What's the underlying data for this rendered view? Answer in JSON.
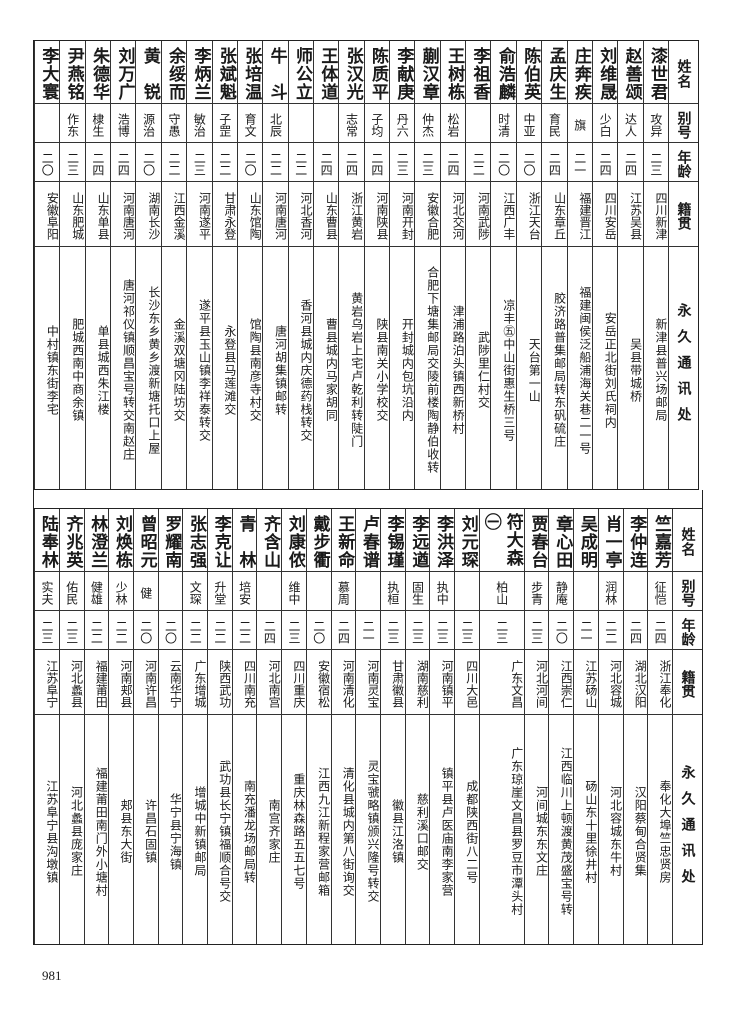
{
  "headers": {
    "name": "姓名",
    "alias": "别号",
    "age": "年龄",
    "origin": "籍贯",
    "address": "永久通讯处"
  },
  "top_table": [
    {
      "name": "漆世君",
      "alias": "攻异",
      "age": "二三",
      "origin": "四川新津",
      "address": "新津县普兴场邮局"
    },
    {
      "name": "赵善颂",
      "alias": "达人",
      "age": "二四",
      "origin": "江苏吴县",
      "address": "吴县带城桥"
    },
    {
      "name": "刘维晟",
      "alias": "少白",
      "age": "二四",
      "origin": "四川安岳",
      "address": "安岳正北街刘氏祠内"
    },
    {
      "name": "庄奔疾",
      "alias": "旗",
      "age": "二一",
      "origin": "福建晋江",
      "address": "福建闽侯泛船浦海关巷二一号"
    },
    {
      "name": "孟庆生",
      "alias": "育民",
      "age": "二四",
      "origin": "山东章丘",
      "address": "胶济路普集邮局转东矾硫庄"
    },
    {
      "name": "陈伯英",
      "alias": "中亚",
      "age": "二〇",
      "origin": "浙江天台",
      "address": "天台第一山"
    },
    {
      "name": "俞浩麟",
      "alias": "时清",
      "age": "二〇",
      "origin": "江西广丰",
      "address": "凉丰㊄中山街惠生桥三号"
    },
    {
      "name": "李祖香",
      "alias": "",
      "age": "二二",
      "origin": "河南武陟",
      "address": "武陟里仁村交"
    },
    {
      "name": "王树栋",
      "alias": "松岩",
      "age": "二四",
      "origin": "河北交河",
      "address": "津浦路泊头镇西新桥村"
    },
    {
      "name": "蒯汉章",
      "alias": "仲杰",
      "age": "二三",
      "origin": "安徽合肥",
      "address": "合肥下塘集邮局交陵前楼陶静伯收转"
    },
    {
      "name": "李献庚",
      "alias": "丹六",
      "age": "二三",
      "origin": "河南开封",
      "address": "开封城内包坑沿内"
    },
    {
      "name": "陈质平",
      "alias": "子均",
      "age": "二四",
      "origin": "河南陕县",
      "address": "陕县南关小学校交"
    },
    {
      "name": "张汉光",
      "alias": "志常",
      "age": "二四",
      "origin": "浙江黄岩",
      "address": "黄岩乌岩上宅卢乾利转陡门"
    },
    {
      "name": "王体道",
      "alias": "",
      "age": "二四",
      "origin": "山东曹县",
      "address": "曹县城内马家胡同"
    },
    {
      "name": "师公立",
      "alias": "",
      "age": "二二",
      "origin": "河北香河",
      "address": "香河县城内庆德药栈转交"
    },
    {
      "name": "牛　斗",
      "alias": "北辰",
      "age": "二二",
      "origin": "河南唐河",
      "address": "唐河胡集镇邮转"
    },
    {
      "name": "张培温",
      "alias": "育文",
      "age": "二〇",
      "origin": "山东馆陶",
      "address": "馆陶县南彦寺村交"
    },
    {
      "name": "张斌魁",
      "alias": "子罡",
      "age": "二二",
      "origin": "甘肃永登",
      "address": "永登县马莲滩交"
    },
    {
      "name": "李炳兰",
      "alias": "敏治",
      "age": "二三",
      "origin": "河南遂平",
      "address": "遂平县玉山镇李祥泰转交"
    },
    {
      "name": "余绥而",
      "alias": "守愚",
      "age": "二二",
      "origin": "江西金溪",
      "address": "金溪双塘冈陆坊交"
    },
    {
      "name": "黄　锐",
      "alias": "源治",
      "age": "二〇",
      "origin": "湖南长沙",
      "address": "长沙东乡黄乡渡新塘托口上屋"
    },
    {
      "name": "刘万广",
      "alias": "浩博",
      "age": "二四",
      "origin": "河南唐河",
      "address": "唐河祁仪镇顺昌宝号转交南赵庄"
    },
    {
      "name": "朱德华",
      "alias": "棣生",
      "age": "二四",
      "origin": "山东单县",
      "address": "单县城西朱江楼"
    },
    {
      "name": "尹燕铭",
      "alias": "作东",
      "age": "二三",
      "origin": "山东肥城",
      "address": "肥城西南中商余镇"
    },
    {
      "name": "李大寰",
      "alias": "",
      "age": "二〇",
      "origin": "安徽阜阳",
      "address": "中村镇东街李宅"
    }
  ],
  "bottom_table": [
    {
      "name": "竺嘉芳",
      "alias": "征恺",
      "age": "二四",
      "origin": "浙江奉化",
      "address": "奉化大埠竺忠贤房"
    },
    {
      "name": "李仲连",
      "alias": "",
      "age": "二四",
      "origin": "湖北汉阳",
      "address": "汉阳蔡甸合贤集"
    },
    {
      "name": "肖一亭",
      "alias": "润林",
      "age": "二二",
      "origin": "河北容城",
      "address": "河北容城东牛村"
    },
    {
      "name": "吴成明",
      "alias": "",
      "age": "二一",
      "origin": "江苏砀山",
      "address": "砀山东十里徐井村"
    },
    {
      "name": "章心田",
      "alias": "静庵",
      "age": "二〇",
      "origin": "江西崇仁",
      "address": "江西临川上顿渡黄茂盛宝号转"
    },
    {
      "name": "贾春台",
      "alias": "步青",
      "age": "二三",
      "origin": "河北河间",
      "address": "河间城东东文庄"
    },
    {
      "name": "符大森㊀",
      "alias": "柏山",
      "age": "二三",
      "origin": "广东文昌",
      "address": "广东琼崖文昌县罗豆市潭头村"
    },
    {
      "name": "刘元琛",
      "alias": "",
      "age": "二三",
      "origin": "四川大邑",
      "address": "成都陕西街八二号"
    },
    {
      "name": "李洪泽",
      "alias": "执中",
      "age": "二三",
      "origin": "河南镇平",
      "address": "镇平县卢医庙南李家营"
    },
    {
      "name": "李远遒",
      "alias": "固生",
      "age": "二三",
      "origin": "湖南慈利",
      "address": "慈利溪口邮交"
    },
    {
      "name": "李锡瑾",
      "alias": "执桓",
      "age": "二三",
      "origin": "甘肃徽县",
      "address": "徽县江洛镇"
    },
    {
      "name": "卢春谱",
      "alias": "",
      "age": "二一",
      "origin": "河南灵宝",
      "address": "灵宝虢略镇颁兴隆号转交"
    },
    {
      "name": "王新命",
      "alias": "慕周",
      "age": "二四",
      "origin": "河南清化",
      "address": "清化县城内第八街询交"
    },
    {
      "name": "戴步衢",
      "alias": "",
      "age": "二〇",
      "origin": "安徽宿松",
      "address": "江西九江新程家营邮箱"
    },
    {
      "name": "刘康侬",
      "alias": "维中",
      "age": "二三",
      "origin": "四川重庆",
      "address": "重庆林森路五五七号"
    },
    {
      "name": "齐含山",
      "alias": "",
      "age": "二四",
      "origin": "河北南宫",
      "address": "南宫齐家庄"
    },
    {
      "name": "青　林",
      "alias": "培安",
      "age": "二二",
      "origin": "四川南充",
      "address": "南充潘龙场邮局转"
    },
    {
      "name": "李克让",
      "alias": "升堂",
      "age": "二二",
      "origin": "陕西武功",
      "address": "武功县长宁镇福顺合号交"
    },
    {
      "name": "张志强",
      "alias": "文琛",
      "age": "二二",
      "origin": "广东增城",
      "address": "增城中新镇邮局"
    },
    {
      "name": "罗耀南",
      "alias": "",
      "age": "二〇",
      "origin": "云南华宁",
      "address": "华宁县宁海镇"
    },
    {
      "name": "曾昭元",
      "alias": "健",
      "age": "二〇",
      "origin": "河南许昌",
      "address": "许昌石固镇"
    },
    {
      "name": "刘焕栋",
      "alias": "少林",
      "age": "二二",
      "origin": "河南郏县",
      "address": "郏县东大街"
    },
    {
      "name": "林澄兰",
      "alias": "健雄",
      "age": "二二",
      "origin": "福建莆田",
      "address": "福建莆田南门外小塘村"
    },
    {
      "name": "齐兆英",
      "alias": "佑民",
      "age": "二三",
      "origin": "河北蠡县",
      "address": "河北蠡县庞家庄"
    },
    {
      "name": "陆奉林",
      "alias": "实夫",
      "age": "二三",
      "origin": "江苏阜宁",
      "address": "江苏阜宁县沟墩镇"
    }
  ],
  "page_number": "981"
}
